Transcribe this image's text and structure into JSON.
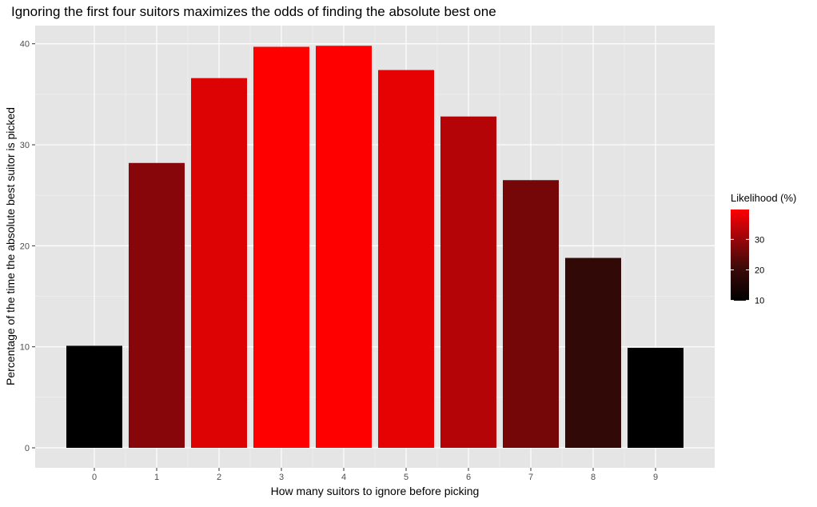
{
  "chart_data": {
    "type": "bar",
    "title": "Ignoring the first four suitors maximizes the odds of finding the absolute best one",
    "xlabel": "How many suitors to ignore before picking",
    "ylabel": "Percentage of the time the absolute best suitor is picked",
    "categories": [
      "0",
      "1",
      "2",
      "3",
      "4",
      "5",
      "6",
      "7",
      "8",
      "9"
    ],
    "values": [
      10.1,
      28.2,
      36.6,
      39.7,
      39.8,
      37.4,
      32.8,
      26.5,
      18.8,
      9.9
    ],
    "ylim": [
      -1.98,
      41.8
    ],
    "yticks": [
      0,
      10,
      20,
      30,
      40
    ],
    "grid": true,
    "background": "#e5e5e5",
    "legend": {
      "title": "Likelihood (%)",
      "position": "right",
      "ticks": [
        10,
        20,
        30
      ],
      "range": [
        9.9,
        39.8
      ],
      "color_low": "#000000",
      "color_high": "#ff0000"
    }
  }
}
